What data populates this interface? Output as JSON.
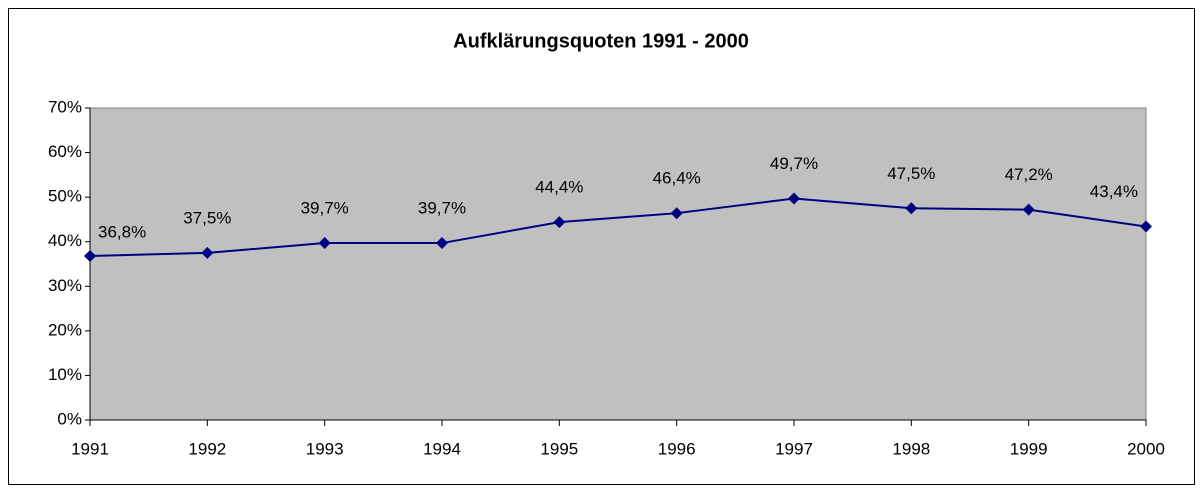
{
  "chart_data": {
    "type": "line",
    "title": "Aufklärungsquoten 1991 - 2000",
    "categories": [
      "1991",
      "1992",
      "1993",
      "1994",
      "1995",
      "1996",
      "1997",
      "1998",
      "1999",
      "2000"
    ],
    "values": [
      36.8,
      37.5,
      39.7,
      39.7,
      44.4,
      46.4,
      49.7,
      47.5,
      47.2,
      43.4
    ],
    "value_labels": [
      "36,8%",
      "37,5%",
      "39,7%",
      "39,7%",
      "44,4%",
      "46,4%",
      "49,7%",
      "47,5%",
      "47,2%",
      "43,4%"
    ],
    "color": "#000080",
    "ylim": [
      0,
      70
    ],
    "yticks": [
      {
        "value": 0,
        "label": "0%"
      },
      {
        "value": 10,
        "label": "10%"
      },
      {
        "value": 20,
        "label": "20%"
      },
      {
        "value": 30,
        "label": "30%"
      },
      {
        "value": 40,
        "label": "40%"
      },
      {
        "value": 50,
        "label": "50%"
      },
      {
        "value": 60,
        "label": "60%"
      },
      {
        "value": 70,
        "label": "70%"
      }
    ],
    "grid": false
  }
}
